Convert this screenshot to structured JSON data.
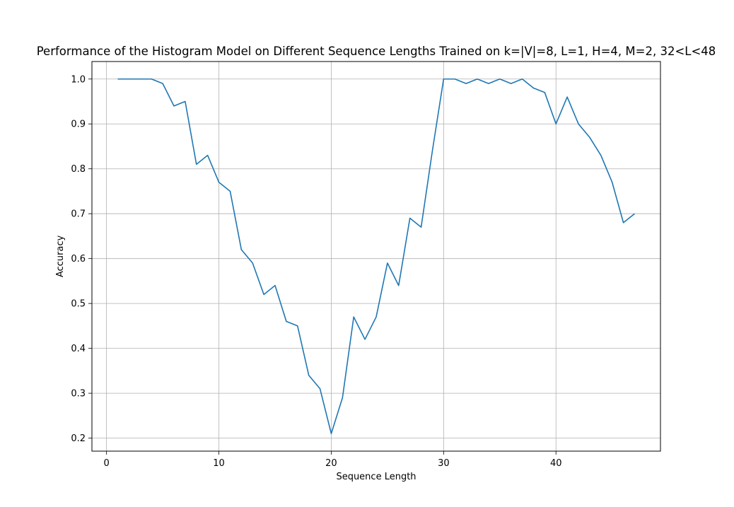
{
  "chart_data": {
    "type": "line",
    "title": "Performance of the Histogram Model on Different Sequence Lengths Trained on k=|V|=8, L=1, H=4, M=2, 32<L<48",
    "xlabel": "Sequence Length",
    "ylabel": "Accuracy",
    "xlim": [
      -1.3,
      49.3
    ],
    "ylim": [
      0.171,
      1.039
    ],
    "xticks": [
      0,
      10,
      20,
      30,
      40
    ],
    "yticks": [
      0.2,
      0.3,
      0.4,
      0.5,
      0.6,
      0.7,
      0.8,
      0.9,
      1.0
    ],
    "xtick_labels": [
      "0",
      "10",
      "20",
      "30",
      "40"
    ],
    "ytick_labels": [
      "0.2",
      "0.3",
      "0.4",
      "0.5",
      "0.6",
      "0.7",
      "0.8",
      "0.9",
      "1.0"
    ],
    "grid": true,
    "series": [
      {
        "color": "#1f77b4",
        "x": [
          1,
          2,
          3,
          4,
          5,
          6,
          7,
          8,
          9,
          10,
          11,
          12,
          13,
          14,
          15,
          16,
          17,
          18,
          19,
          20,
          21,
          22,
          23,
          24,
          25,
          26,
          27,
          28,
          29,
          30,
          31,
          32,
          33,
          34,
          35,
          36,
          37,
          38,
          39,
          40,
          41,
          42,
          43,
          44,
          45,
          46,
          47
        ],
        "y": [
          1.0,
          1.0,
          1.0,
          1.0,
          0.99,
          0.94,
          0.95,
          0.81,
          0.83,
          0.77,
          0.75,
          0.62,
          0.59,
          0.52,
          0.54,
          0.46,
          0.45,
          0.34,
          0.31,
          0.21,
          0.29,
          0.47,
          0.42,
          0.47,
          0.59,
          0.54,
          0.69,
          0.67,
          0.84,
          1.0,
          1.0,
          0.99,
          1.0,
          0.99,
          1.0,
          0.99,
          1.0,
          0.98,
          0.97,
          0.9,
          0.96,
          0.9,
          0.87,
          0.83,
          0.77,
          0.68,
          0.7
        ]
      }
    ]
  }
}
